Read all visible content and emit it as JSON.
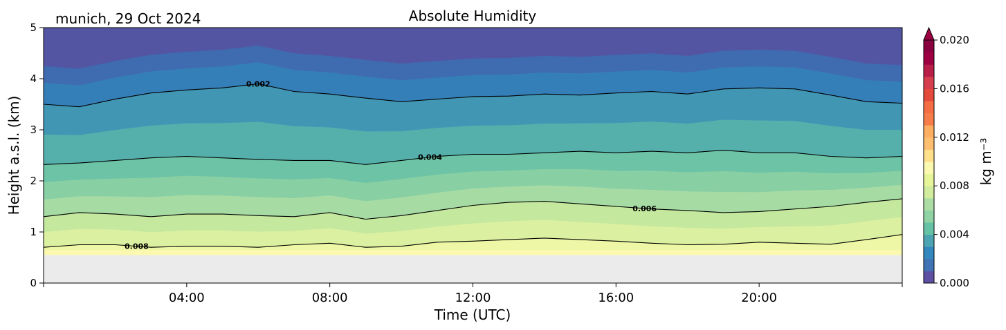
{
  "chart_data": {
    "type": "heatmap",
    "title": "Absolute Humidity",
    "subtitle": "munich, 29 Oct 2024",
    "xlabel": "Time (UTC)",
    "ylabel": "Height a.s.l. (km)",
    "xlim_hours": [
      0,
      24
    ],
    "ylim_km": [
      0,
      5
    ],
    "x_ticks": [
      {
        "hour": 4,
        "label": "04:00"
      },
      {
        "hour": 8,
        "label": "08:00"
      },
      {
        "hour": 12,
        "label": "12:00"
      },
      {
        "hour": 16,
        "label": "16:00"
      },
      {
        "hour": 20,
        "label": "20:00"
      }
    ],
    "y_ticks": [
      {
        "value": 0,
        "label": "0"
      },
      {
        "value": 1,
        "label": "1"
      },
      {
        "value": 2,
        "label": "2"
      },
      {
        "value": 3,
        "label": "3"
      },
      {
        "value": 4,
        "label": "4"
      },
      {
        "value": 5,
        "label": "5"
      }
    ],
    "data_bottom_km": 0.55,
    "no_data_color": "#ebebeb",
    "colormap": "Spectral_r",
    "colorbar": {
      "label": "kg m⁻³",
      "range": [
        0.0,
        0.02
      ],
      "extend": "max",
      "ticks": [
        {
          "value": 0.0,
          "label": "0.000"
        },
        {
          "value": 0.004,
          "label": "0.004"
        },
        {
          "value": 0.008,
          "label": "0.008"
        },
        {
          "value": 0.012,
          "label": "0.012"
        },
        {
          "value": 0.016,
          "label": "0.016"
        },
        {
          "value": 0.02,
          "label": "0.020"
        }
      ]
    },
    "filled_band_colors": [
      "#fbf8b0",
      "#eef7a5",
      "#dbf0a0",
      "#c3e89e",
      "#a6dba4",
      "#88cfa4",
      "#6cc3a5",
      "#55b0ac",
      "#4196b4",
      "#357fb8",
      "#3f6bb0",
      "#5355a2"
    ],
    "contours": [
      {
        "level": "0.002",
        "label_hour": 6.0,
        "heights_km": [
          3.5,
          3.45,
          3.6,
          3.72,
          3.78,
          3.82,
          3.9,
          3.75,
          3.7,
          3.62,
          3.55,
          3.6,
          3.65,
          3.66,
          3.7,
          3.68,
          3.72,
          3.75,
          3.7,
          3.8,
          3.82,
          3.8,
          3.68,
          3.55,
          3.52
        ]
      },
      {
        "level": "0.004",
        "label_hour": 10.8,
        "heights_km": [
          2.32,
          2.35,
          2.4,
          2.45,
          2.48,
          2.45,
          2.42,
          2.4,
          2.4,
          2.32,
          2.4,
          2.48,
          2.52,
          2.52,
          2.55,
          2.58,
          2.55,
          2.58,
          2.55,
          2.6,
          2.55,
          2.55,
          2.48,
          2.45,
          2.48
        ]
      },
      {
        "level": "0.006",
        "label_hour": 16.8,
        "heights_km": [
          1.3,
          1.38,
          1.35,
          1.3,
          1.35,
          1.35,
          1.32,
          1.3,
          1.38,
          1.25,
          1.32,
          1.42,
          1.52,
          1.58,
          1.6,
          1.55,
          1.5,
          1.45,
          1.42,
          1.38,
          1.4,
          1.45,
          1.5,
          1.58,
          1.65
        ]
      },
      {
        "level": "0.008",
        "label_hour": 2.6,
        "heights_km": [
          0.7,
          0.75,
          0.75,
          0.7,
          0.72,
          0.72,
          0.7,
          0.75,
          0.78,
          0.7,
          0.72,
          0.8,
          0.82,
          0.85,
          0.88,
          0.85,
          0.82,
          0.78,
          0.75,
          0.76,
          0.8,
          0.78,
          0.76,
          0.85,
          0.95
        ]
      }
    ]
  }
}
